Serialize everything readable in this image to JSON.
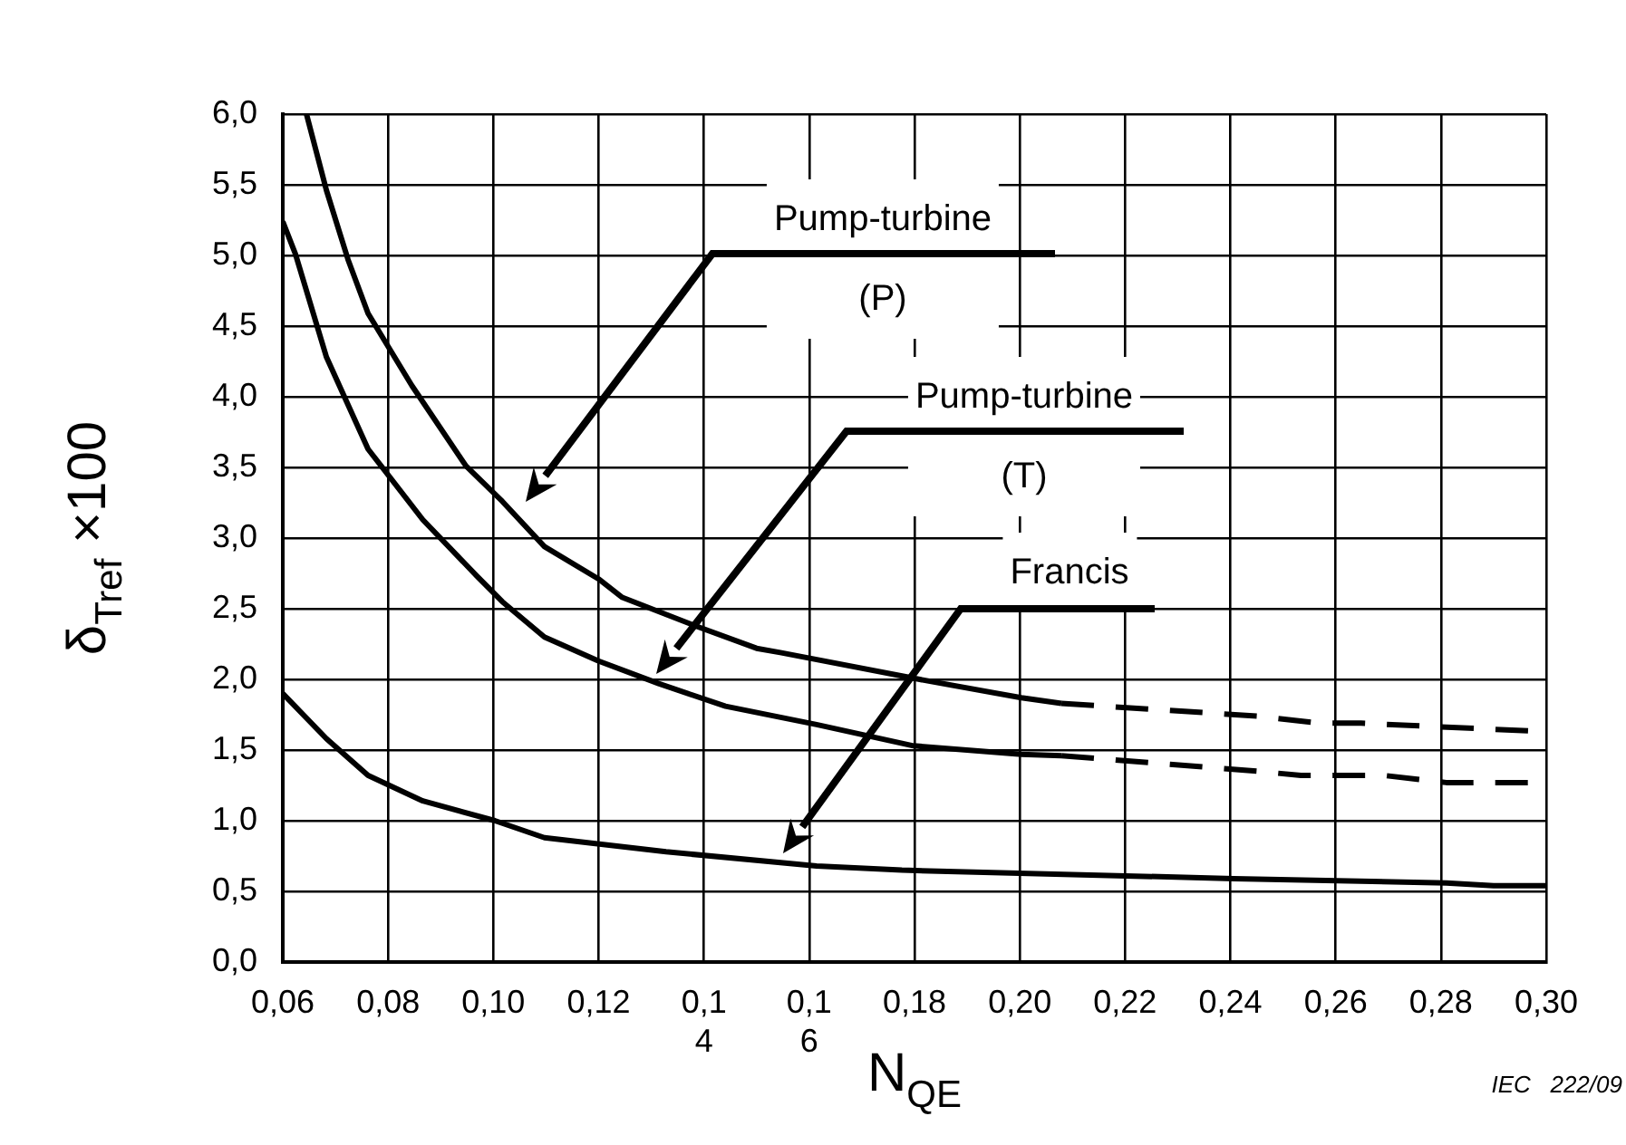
{
  "chart_data": {
    "type": "line",
    "xlabel": "N$_{QE}$",
    "ylabel": "δ$_{Tref}$ ×100",
    "xlim": [
      0.06,
      0.3
    ],
    "xticks": [
      {
        "value": 0.06,
        "label": "0,06"
      },
      {
        "value": 0.08,
        "label": "0,08"
      },
      {
        "value": 0.1,
        "label": "0,10"
      },
      {
        "value": 0.12,
        "label": "0,12"
      },
      {
        "value": 0.14,
        "label": "0,1\n4"
      },
      {
        "value": 0.16,
        "label": "0,1\n6"
      },
      {
        "value": 0.18,
        "label": "0,18"
      },
      {
        "value": 0.2,
        "label": "0,20"
      },
      {
        "value": 0.22,
        "label": "0,22"
      },
      {
        "value": 0.24,
        "label": "0,24"
      },
      {
        "value": 0.26,
        "label": "0,26"
      },
      {
        "value": 0.28,
        "label": "0,28"
      },
      {
        "value": 0.3,
        "label": "0,30"
      }
    ],
    "ylim": [
      0,
      6
    ],
    "yticks": [
      {
        "value": 0,
        "label": "0,0"
      },
      {
        "value": 0.5,
        "label": "0,5"
      },
      {
        "value": 1,
        "label": "1,0"
      },
      {
        "value": 1.5,
        "label": "1,5"
      },
      {
        "value": 2,
        "label": "2,0"
      },
      {
        "value": 2.5,
        "label": "2,5"
      },
      {
        "value": 3,
        "label": "3,0"
      },
      {
        "value": 3.5,
        "label": "3,5"
      },
      {
        "value": 4,
        "label": "4,0"
      },
      {
        "value": 4.5,
        "label": "4,5"
      },
      {
        "value": 5,
        "label": "5,0"
      },
      {
        "value": 5.5,
        "label": "5,5"
      },
      {
        "value": 6,
        "label": "6,0"
      }
    ],
    "grid": true,
    "legend": false,
    "marker": "none",
    "series": [
      {
        "color": "#000000",
        "line_style": "solid",
        "x": [
          0.0645,
          0.0683,
          0.0724,
          0.0762,
          0.0845,
          0.0948,
          0.1017,
          0.1097,
          0.12,
          0.1245,
          0.1383,
          0.15,
          0.1545,
          0.181,
          0.2003,
          0.2079
        ],
        "values": [
          6.0,
          5.46,
          4.97,
          4.59,
          4.08,
          3.51,
          3.26,
          2.94,
          2.71,
          2.58,
          2.38,
          2.22,
          2.19,
          2.0,
          1.87,
          1.83
        ]
      },
      {
        "color": "#000000",
        "line_style": "dashed",
        "x": [
          0.2079,
          0.2452,
          0.2569,
          0.2648,
          0.3
        ],
        "values": [
          1.83,
          1.74,
          1.69,
          1.69,
          1.63
        ]
      },
      {
        "color": "#000000",
        "line_style": "solid",
        "x": [
          0.06,
          0.0624,
          0.0683,
          0.0762,
          0.0866,
          0.0969,
          0.1017,
          0.1097,
          0.12,
          0.1314,
          0.1441,
          0.1614,
          0.1798,
          0.2003,
          0.2079
        ],
        "values": [
          5.24,
          5.01,
          4.28,
          3.63,
          3.13,
          2.73,
          2.55,
          2.3,
          2.13,
          1.97,
          1.81,
          1.68,
          1.53,
          1.47,
          1.46
        ]
      },
      {
        "color": "#000000",
        "line_style": "dashed",
        "x": [
          0.2079,
          0.2452,
          0.2534,
          0.2693,
          0.281,
          0.3
        ],
        "values": [
          1.46,
          1.35,
          1.32,
          1.32,
          1.27,
          1.27
        ]
      },
      {
        "color": "#000000",
        "line_style": "solid",
        "x": [
          0.06,
          0.0683,
          0.0762,
          0.0866,
          0.1003,
          0.1097,
          0.1328,
          0.1614,
          0.1776,
          0.2407,
          0.281,
          0.29,
          0.3
        ],
        "values": [
          1.9,
          1.58,
          1.32,
          1.14,
          1.0,
          0.88,
          0.78,
          0.68,
          0.65,
          0.59,
          0.56,
          0.54,
          0.54
        ]
      }
    ],
    "annotations": [
      "Pump-turbine\n(P)",
      "Pump-turbine\n(T)",
      "Francis",
      "IEC   222/09"
    ]
  }
}
